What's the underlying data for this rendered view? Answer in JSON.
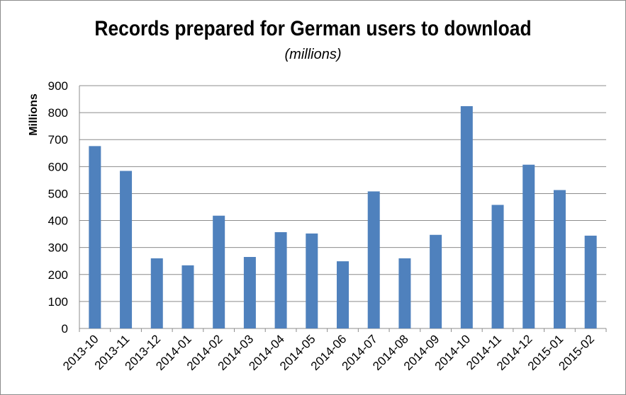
{
  "chart_data": {
    "type": "bar",
    "title": "Records prepared for German users to download",
    "subtitle": "(millions)",
    "ylabel": "Millions",
    "xlabel": "",
    "ylim": [
      0,
      900
    ],
    "yticks": [
      0,
      100,
      200,
      300,
      400,
      500,
      600,
      700,
      800,
      900
    ],
    "grid": true,
    "bar_color": "#4f81bd",
    "categories": [
      "2013-10",
      "2013-11",
      "2013-12",
      "2014-01",
      "2014-02",
      "2014-03",
      "2014-04",
      "2014-05",
      "2014-06",
      "2014-07",
      "2014-08",
      "2014-09",
      "2014-10",
      "2014-11",
      "2014-12",
      "2015-01",
      "2015-02"
    ],
    "values": [
      676,
      584,
      260,
      234,
      418,
      265,
      357,
      352,
      249,
      508,
      260,
      347,
      824,
      458,
      607,
      513,
      344
    ]
  }
}
